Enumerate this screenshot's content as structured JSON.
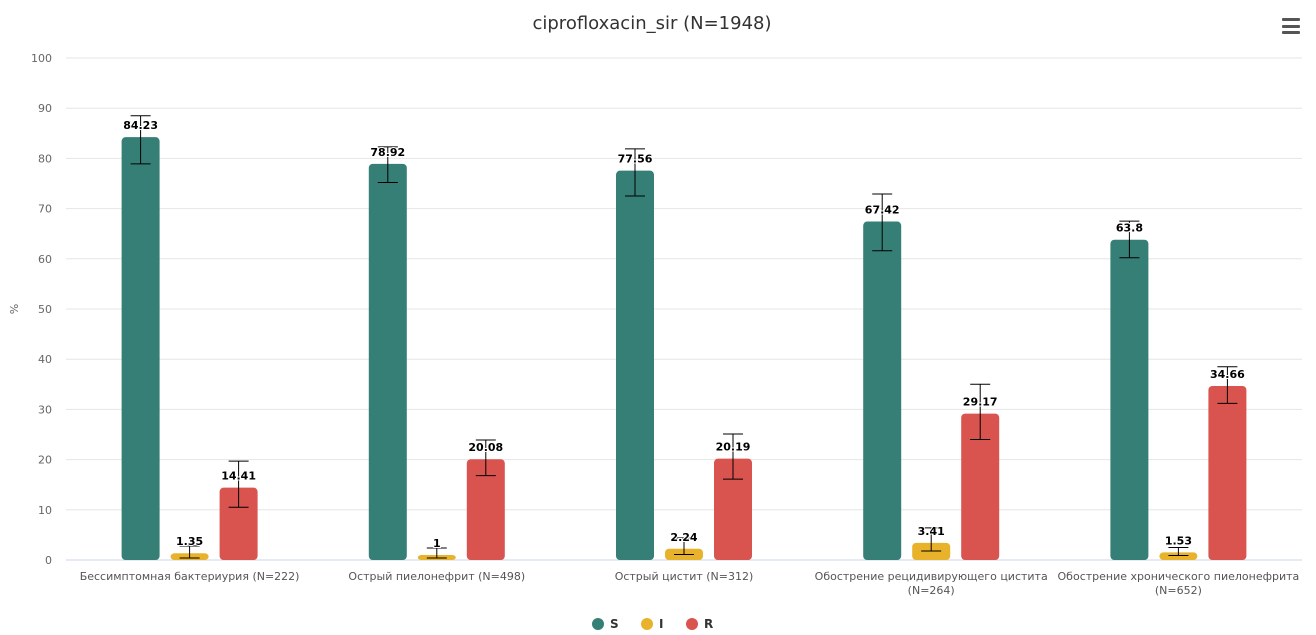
{
  "colors": {
    "S": "#367f76",
    "I": "#e8b32a",
    "R": "#d9534f"
  },
  "menu_icon": "hamburger-menu-icon",
  "chart_data": {
    "type": "bar",
    "title": "ciprofloxacin_sir (N=1948)",
    "ylabel": "%",
    "xlabel": "",
    "ylim": [
      0,
      100
    ],
    "yticks": [
      0,
      10,
      20,
      30,
      40,
      50,
      60,
      70,
      80,
      90,
      100
    ],
    "grid": true,
    "legend_position": "bottom-center",
    "categories": [
      [
        "Бессимптомная бактериурия (N=222)"
      ],
      [
        "Острый пиелонефрит (N=498)"
      ],
      [
        "Острый цистит (N=312)"
      ],
      [
        "Обострение рецидивирующего цистита",
        "(N=264)"
      ],
      [
        "Обострение хронического пиелонефрита",
        "(N=652)"
      ]
    ],
    "series": [
      {
        "name": "S",
        "values": [
          84.23,
          78.92,
          77.56,
          67.42,
          63.8
        ],
        "labels": [
          "84.23",
          "78.92",
          "77.56",
          "67.42",
          "63.8"
        ],
        "err_low": [
          78.9,
          75.2,
          72.5,
          61.6,
          60.2
        ],
        "err_high": [
          88.5,
          82.3,
          81.9,
          72.9,
          67.5
        ]
      },
      {
        "name": "I",
        "values": [
          1.35,
          1,
          2.24,
          3.41,
          1.53
        ],
        "labels": [
          "1.35",
          "1",
          "2.24",
          "3.41",
          "1.53"
        ],
        "err_low": [
          0.4,
          0.4,
          1.1,
          1.8,
          0.9
        ],
        "err_high": [
          2.8,
          2.4,
          4.4,
          6.4,
          2.5
        ]
      },
      {
        "name": "R",
        "values": [
          14.41,
          20.08,
          20.19,
          29.17,
          34.66
        ],
        "labels": [
          "14.41",
          "20.08",
          "20.19",
          "29.17",
          "34.66"
        ],
        "err_low": [
          10.5,
          16.8,
          16.1,
          24.0,
          31.2
        ],
        "err_high": [
          19.7,
          23.9,
          25.1,
          35.0,
          38.5
        ]
      }
    ]
  }
}
